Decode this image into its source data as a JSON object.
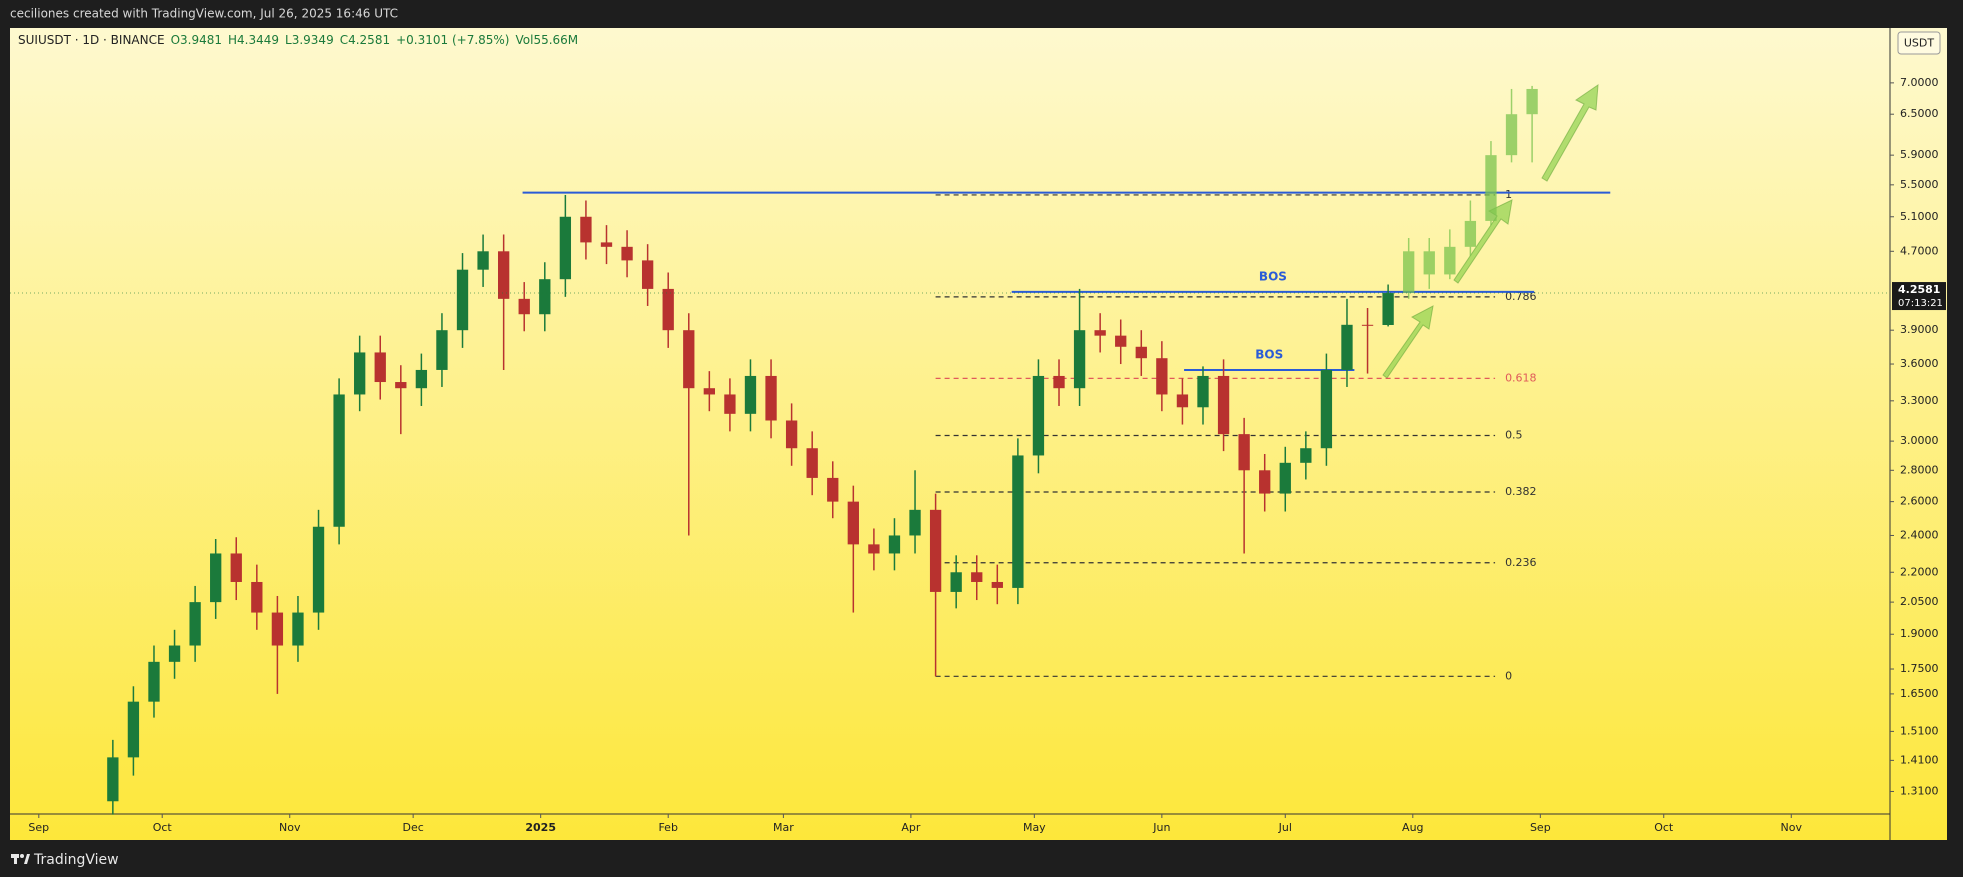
{
  "header": {
    "attribution": "ceciliones created with TradingView.com, Jul 26, 2025 16:46 UTC",
    "footer": "TradingView",
    "currency_button": "USDT"
  },
  "chart_data": {
    "type": "candlestick",
    "legend": {
      "symbol": "SUIUSDT · 1D · BINANCE",
      "items": [
        "O3.9481",
        "H4.3449",
        "L3.9349",
        "C4.2581",
        "+0.3101 (+7.85%)",
        "Vol55.66M"
      ]
    },
    "log_scale": true,
    "grid": false,
    "xlim": [
      -7,
      450
    ],
    "xticks": [
      {
        "value": 0,
        "label": "Sep"
      },
      {
        "value": 30,
        "label": "Oct"
      },
      {
        "value": 61,
        "label": "Nov"
      },
      {
        "value": 91,
        "label": "Dec"
      },
      {
        "value": 122,
        "label": "2025"
      },
      {
        "value": 153,
        "label": "Feb"
      },
      {
        "value": 181,
        "label": "Mar"
      },
      {
        "value": 212,
        "label": "Apr"
      },
      {
        "value": 242,
        "label": "May"
      },
      {
        "value": 273,
        "label": "Jun"
      },
      {
        "value": 303,
        "label": "Jul"
      },
      {
        "value": 334,
        "label": "Aug"
      },
      {
        "value": 365,
        "label": "Sep"
      },
      {
        "value": 395,
        "label": "Oct"
      },
      {
        "value": 426,
        "label": "Nov"
      }
    ],
    "ylim": [
      1.242,
      7.97
    ],
    "yticks": [
      {
        "value": 1.31,
        "label": "1.3100"
      },
      {
        "value": 1.41,
        "label": "1.4100"
      },
      {
        "value": 1.51,
        "label": "1.5100"
      },
      {
        "value": 1.65,
        "label": "1.6500"
      },
      {
        "value": 1.75,
        "label": "1.7500"
      },
      {
        "value": 1.9,
        "label": "1.9000"
      },
      {
        "value": 2.05,
        "label": "2.0500"
      },
      {
        "value": 2.2,
        "label": "2.2000"
      },
      {
        "value": 2.4,
        "label": "2.4000"
      },
      {
        "value": 2.6,
        "label": "2.6000"
      },
      {
        "value": 2.8,
        "label": "2.8000"
      },
      {
        "value": 3.0,
        "label": "3.0000"
      },
      {
        "value": 3.3,
        "label": "3.3000"
      },
      {
        "value": 3.6,
        "label": "3.6000"
      },
      {
        "value": 3.9,
        "label": "3.9000"
      },
      {
        "value": 4.7,
        "label": "4.7000"
      },
      {
        "value": 5.1,
        "label": "5.1000"
      },
      {
        "value": 5.5,
        "label": "5.5000"
      },
      {
        "value": 5.9,
        "label": "5.9000"
      },
      {
        "value": 6.5,
        "label": "6.5000"
      },
      {
        "value": 7.0,
        "label": "7.0000"
      }
    ],
    "last_price": 4.2581,
    "countdown": "07:13:21",
    "up_color": "#1b7a3b",
    "down_color": "#b8322f",
    "x": [
      18,
      23,
      28,
      33,
      38,
      43,
      48,
      53,
      58,
      63,
      68,
      73,
      78,
      83,
      88,
      93,
      98,
      103,
      108,
      113,
      118,
      123,
      128,
      133,
      138,
      143,
      148,
      153,
      158,
      163,
      168,
      173,
      178,
      183,
      188,
      193,
      198,
      203,
      208,
      213,
      218,
      223,
      228,
      233,
      238,
      243,
      248,
      253,
      258,
      263,
      268,
      273,
      278,
      283,
      288,
      293,
      298,
      303,
      308,
      313,
      318,
      323,
      328
    ],
    "open": [
      1.28,
      1.42,
      1.62,
      1.78,
      1.85,
      2.05,
      2.3,
      2.15,
      2.0,
      1.85,
      2.0,
      2.45,
      3.35,
      3.7,
      3.45,
      3.4,
      3.55,
      3.9,
      4.5,
      4.7,
      4.2,
      4.05,
      4.4,
      5.1,
      4.8,
      4.75,
      4.6,
      4.3,
      3.9,
      3.4,
      3.35,
      3.2,
      3.5,
      3.15,
      2.95,
      2.75,
      2.6,
      2.35,
      2.3,
      2.4,
      2.55,
      2.1,
      2.2,
      2.15,
      2.12,
      2.9,
      3.5,
      3.4,
      3.9,
      3.85,
      3.75,
      3.65,
      3.35,
      3.25,
      3.5,
      3.05,
      2.8,
      2.65,
      2.85,
      2.95,
      3.55,
      3.95,
      3.9481
    ],
    "high": [
      1.48,
      1.68,
      1.85,
      1.92,
      2.13,
      2.38,
      2.39,
      2.24,
      2.08,
      2.08,
      2.55,
      3.48,
      3.85,
      3.85,
      3.59,
      3.69,
      4.06,
      4.68,
      4.89,
      4.89,
      4.37,
      4.58,
      5.37,
      5.3,
      5.0,
      4.94,
      4.78,
      4.47,
      4.06,
      3.54,
      3.48,
      3.64,
      3.64,
      3.28,
      3.07,
      2.86,
      2.7,
      2.44,
      2.5,
      2.8,
      2.65,
      2.29,
      2.29,
      2.24,
      3.02,
      3.64,
      3.64,
      4.3,
      4.06,
      4.0,
      3.9,
      3.8,
      3.48,
      3.58,
      3.64,
      3.17,
      2.91,
      2.96,
      3.07,
      3.69,
      4.2,
      4.11,
      4.3449
    ],
    "low": [
      1.24,
      1.36,
      1.56,
      1.71,
      1.78,
      1.97,
      2.06,
      1.92,
      1.65,
      1.78,
      1.92,
      2.35,
      3.22,
      3.31,
      3.05,
      3.26,
      3.41,
      3.74,
      4.32,
      3.55,
      3.89,
      3.89,
      4.22,
      4.61,
      4.56,
      4.42,
      4.13,
      3.74,
      2.4,
      3.22,
      3.07,
      3.07,
      3.02,
      2.83,
      2.64,
      2.5,
      2.0,
      2.21,
      2.21,
      2.3,
      1.72,
      2.02,
      2.06,
      2.04,
      2.04,
      2.78,
      3.26,
      3.26,
      3.7,
      3.6,
      3.5,
      3.22,
      3.12,
      3.12,
      2.93,
      2.3,
      2.54,
      2.54,
      2.74,
      2.83,
      3.41,
      3.52,
      3.9349
    ],
    "close": [
      1.42,
      1.62,
      1.78,
      1.85,
      2.05,
      2.3,
      2.15,
      2.0,
      1.85,
      2.0,
      2.45,
      3.35,
      3.7,
      3.45,
      3.4,
      3.55,
      3.9,
      4.5,
      4.7,
      4.2,
      4.05,
      4.4,
      5.1,
      4.8,
      4.75,
      4.6,
      4.3,
      3.9,
      3.4,
      3.35,
      3.2,
      3.5,
      3.15,
      2.95,
      2.75,
      2.6,
      2.35,
      2.3,
      2.4,
      2.55,
      2.1,
      2.2,
      2.15,
      2.12,
      2.9,
      3.5,
      3.4,
      3.9,
      3.85,
      3.75,
      3.65,
      3.35,
      3.25,
      3.5,
      3.05,
      2.8,
      2.65,
      2.85,
      2.95,
      3.55,
      3.95,
      3.9481,
      4.2581
    ],
    "projection": {
      "color": "#7cc44e",
      "x": [
        333,
        338,
        343,
        348,
        353,
        358,
        363
      ],
      "open": [
        4.26,
        4.7,
        4.45,
        4.75,
        5.05,
        5.9,
        6.5
      ],
      "high": [
        4.85,
        4.85,
        4.95,
        5.3,
        6.1,
        6.9,
        6.95
      ],
      "low": [
        4.2,
        4.3,
        4.4,
        4.65,
        5.0,
        5.8,
        5.8
      ],
      "close": [
        4.7,
        4.45,
        4.75,
        5.05,
        5.9,
        6.5,
        6.9
      ]
    },
    "fib": {
      "x": [
        218,
        354
      ],
      "color": "#333333",
      "highlight_color": "#e05a5a",
      "highlight_level": 0.618,
      "levels": [
        0,
        0.236,
        0.382,
        0.5,
        0.618,
        0.786,
        1
      ],
      "prices": [
        1.72,
        2.25,
        2.66,
        3.04,
        3.48,
        4.22,
        5.37
      ]
    },
    "hlines": [
      {
        "price": 5.4,
        "x": [
          117.6,
          382
        ]
      },
      {
        "price": 4.27,
        "x": [
          236.5,
          363.5
        ],
        "label": "BOS"
      },
      {
        "price": 3.55,
        "x": [
          278.4,
          319.8
        ],
        "label": "BOS"
      }
    ],
    "hline_color": "#2a5bd7"
  }
}
